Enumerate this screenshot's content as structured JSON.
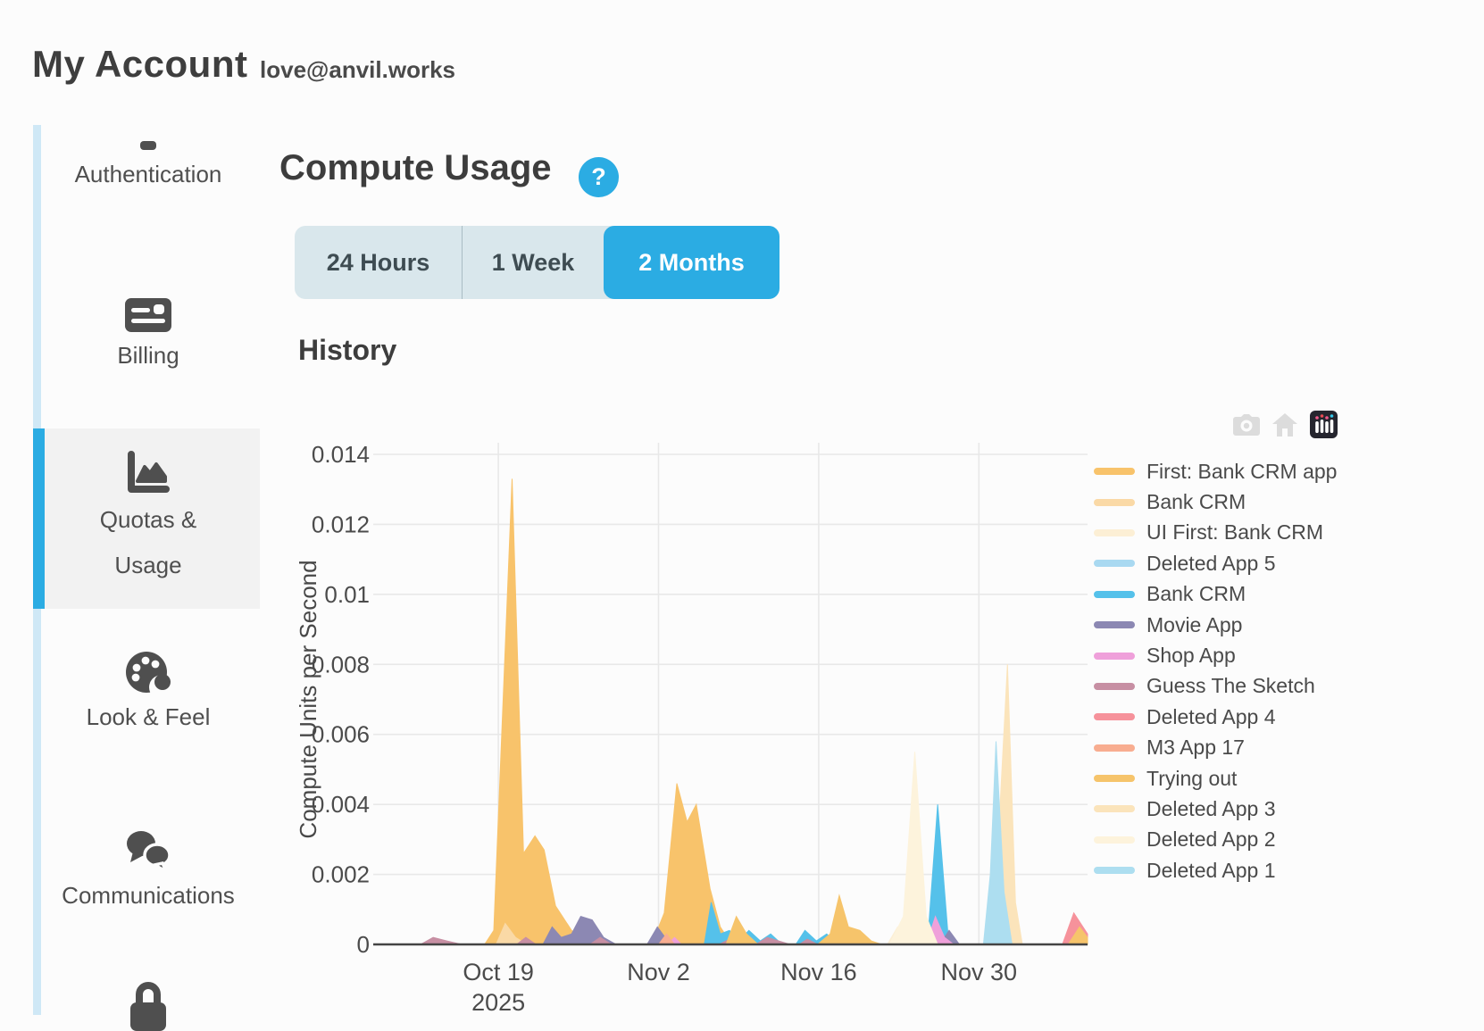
{
  "header": {
    "title": "My Account",
    "email": "love@anvil.works"
  },
  "sidebar": {
    "items": [
      {
        "label": "Authentication",
        "icon": "key-icon"
      },
      {
        "label": "Billing",
        "icon": "credit-card-icon"
      },
      {
        "label": "Quotas & Usage",
        "lines": [
          "Quotas &",
          "Usage"
        ],
        "icon": "chart-area-icon",
        "selected": true
      },
      {
        "label": "Look & Feel",
        "icon": "palette-icon"
      },
      {
        "label": "Communications",
        "icon": "comments-icon"
      },
      {
        "label": "",
        "icon": "lock-icon"
      }
    ],
    "accent_color": "#2bace3",
    "rail_color": "#cfe8f6",
    "selected_bg": "#f2f2f2"
  },
  "main": {
    "section_title": "Compute Usage",
    "help_label": "?",
    "range_buttons": [
      {
        "label": "24 Hours",
        "active": false
      },
      {
        "label": "1 Week",
        "active": false
      },
      {
        "label": "2 Months",
        "active": true
      }
    ],
    "history_title": "History",
    "accent_color": "#2bace3"
  },
  "chart_data": {
    "type": "area",
    "title": "",
    "xlabel": "",
    "ylabel": "Compute Units per Second",
    "x_unit": "days since 2025-10-09",
    "xlim": [
      0,
      61.5
    ],
    "ylim": [
      0,
      0.014
    ],
    "grid": true,
    "legend_position": "right",
    "modebar_icons": [
      "camera-icon",
      "home-icon",
      "plotly-logo-icon"
    ],
    "x_ticks": [
      {
        "day": 10,
        "label": "Oct 19",
        "sublabel": "2025"
      },
      {
        "day": 24,
        "label": "Nov 2",
        "sublabel": ""
      },
      {
        "day": 38,
        "label": "Nov 16",
        "sublabel": ""
      },
      {
        "day": 52,
        "label": "Nov 30",
        "sublabel": ""
      }
    ],
    "y_ticks": [
      "0",
      "0.002",
      "0.004",
      "0.006",
      "0.008",
      "0.01",
      "0.012",
      "0.014"
    ],
    "series": [
      {
        "name": "First: Bank CRM app",
        "color": "#F8C36B",
        "points": [
          [
            0,
            0
          ],
          [
            8.8,
            0
          ],
          [
            9.6,
            0.0004
          ],
          [
            11.2,
            0.0133
          ],
          [
            12.2,
            0.0026
          ],
          [
            13.2,
            0.0031
          ],
          [
            14.0,
            0.0027
          ],
          [
            15.0,
            0.0011
          ],
          [
            16.4,
            0.0004
          ],
          [
            17.8,
            0.0001
          ],
          [
            19.0,
            0
          ],
          [
            23.4,
            0
          ],
          [
            24.5,
            0.0009
          ],
          [
            25.6,
            0.0046
          ],
          [
            26.5,
            0.0035
          ],
          [
            27.3,
            0.004
          ],
          [
            28.5,
            0.0016
          ],
          [
            29.4,
            0.0005
          ],
          [
            30.4,
            0
          ],
          [
            61.5,
            0
          ]
        ]
      },
      {
        "name": "Bank CRM",
        "color": "#FAD9A6",
        "points": [
          [
            0,
            0
          ],
          [
            9.8,
            0
          ],
          [
            10.6,
            0.0006
          ],
          [
            11.5,
            0.0002
          ],
          [
            12.5,
            0
          ],
          [
            61.5,
            0
          ]
        ]
      },
      {
        "name": "UI First: Bank CRM",
        "color": "#FCEFD5",
        "points": [
          [
            0,
            0
          ],
          [
            44.0,
            0
          ],
          [
            44.9,
            0.0005
          ],
          [
            45.8,
            0.0001
          ],
          [
            46.6,
            0
          ],
          [
            61.5,
            0
          ]
        ]
      },
      {
        "name": "Deleted App 5",
        "color": "#A9D9F1",
        "points": [
          [
            0,
            0
          ],
          [
            45.6,
            0
          ],
          [
            46.4,
            0.0004
          ],
          [
            47.2,
            0.0001
          ],
          [
            48.0,
            0
          ],
          [
            61.5,
            0
          ]
        ]
      },
      {
        "name": "Bank CRM",
        "color": "#55C1EA",
        "points": [
          [
            0,
            0
          ],
          [
            28.0,
            0
          ],
          [
            28.6,
            0.0012
          ],
          [
            29.4,
            0.0003
          ],
          [
            30.2,
            0.0004
          ],
          [
            31.0,
            0.0001
          ],
          [
            31.9,
            0.0004
          ],
          [
            32.9,
            0.0001
          ],
          [
            33.8,
            0.0003
          ],
          [
            34.8,
            0
          ],
          [
            36.0,
            0
          ],
          [
            36.8,
            0.0004
          ],
          [
            37.8,
            0.0001
          ],
          [
            38.7,
            0.0003
          ],
          [
            39.6,
            0
          ],
          [
            47.5,
            0
          ],
          [
            48.4,
            0.004
          ],
          [
            49.3,
            0.0003
          ],
          [
            50.2,
            0
          ],
          [
            61.5,
            0
          ]
        ]
      },
      {
        "name": "Movie App",
        "color": "#8C88B3",
        "points": [
          [
            0,
            0
          ],
          [
            13.9,
            0
          ],
          [
            14.7,
            0.0005
          ],
          [
            15.5,
            0.0002
          ],
          [
            16.4,
            0.0003
          ],
          [
            17.2,
            0.0008
          ],
          [
            18.2,
            0.0007
          ],
          [
            19.2,
            0.0002
          ],
          [
            20.3,
            0
          ],
          [
            23.0,
            0
          ],
          [
            23.9,
            0.0005
          ],
          [
            24.8,
            0.0001
          ],
          [
            25.6,
            0
          ],
          [
            48.6,
            0
          ],
          [
            49.4,
            0.0004
          ],
          [
            50.3,
            0
          ],
          [
            61.5,
            0
          ]
        ]
      },
      {
        "name": "Shop App",
        "color": "#EFA0DA",
        "points": [
          [
            0,
            0
          ],
          [
            24.8,
            0
          ],
          [
            25.4,
            0.0002
          ],
          [
            26.0,
            0
          ],
          [
            47.4,
            0
          ],
          [
            48.2,
            0.0008
          ],
          [
            49.0,
            0.0002
          ],
          [
            49.8,
            0
          ],
          [
            52.6,
            0
          ],
          [
            53.5,
            0.0008
          ],
          [
            54.3,
            0.0002
          ],
          [
            55.0,
            0
          ],
          [
            61.5,
            0
          ]
        ]
      },
      {
        "name": "Guess The Sketch",
        "color": "#C78FA3",
        "points": [
          [
            0,
            0
          ],
          [
            3.2,
            0
          ],
          [
            4.3,
            0.0002
          ],
          [
            5.5,
            0.0001
          ],
          [
            6.8,
            0
          ],
          [
            11.6,
            0
          ],
          [
            12.4,
            0.0002
          ],
          [
            13.3,
            0
          ],
          [
            18.0,
            0
          ],
          [
            18.9,
            0.0002
          ],
          [
            19.9,
            0
          ],
          [
            29.3,
            0
          ],
          [
            30.2,
            0.00015
          ],
          [
            31.2,
            0
          ],
          [
            32.5,
            0
          ],
          [
            33.5,
            0.0002
          ],
          [
            34.5,
            0.0001
          ],
          [
            35.5,
            0
          ],
          [
            36.3,
            0
          ],
          [
            37.0,
            0.00015
          ],
          [
            37.9,
            0
          ],
          [
            61.5,
            0
          ]
        ]
      },
      {
        "name": "Deleted App 4",
        "color": "#F6929B",
        "points": [
          [
            0,
            0
          ],
          [
            59.3,
            0
          ],
          [
            60.3,
            0.0009
          ],
          [
            61.5,
            0.0003
          ]
        ]
      },
      {
        "name": "M3 App 17",
        "color": "#F8AD90",
        "points": [
          [
            0,
            0
          ],
          [
            24.0,
            0
          ],
          [
            24.7,
            0.0003
          ],
          [
            25.4,
            0
          ],
          [
            31.2,
            0
          ],
          [
            31.9,
            0.0002
          ],
          [
            32.7,
            0
          ],
          [
            61.5,
            0
          ]
        ]
      },
      {
        "name": "Trying out",
        "color": "#F6C46B",
        "points": [
          [
            0,
            0
          ],
          [
            29.9,
            0
          ],
          [
            30.8,
            0.0008
          ],
          [
            31.7,
            0.0003
          ],
          [
            32.7,
            0
          ],
          [
            37.9,
            0
          ],
          [
            39.0,
            0.0003
          ],
          [
            39.8,
            0.0014
          ],
          [
            40.6,
            0.0005
          ],
          [
            41.6,
            0.0004
          ],
          [
            42.6,
            0.0001
          ],
          [
            43.5,
            0
          ],
          [
            59.8,
            0
          ],
          [
            60.8,
            0.0005
          ],
          [
            61.5,
            0.0002
          ]
        ]
      },
      {
        "name": "Deleted App 3",
        "color": "#FBE4BB",
        "points": [
          [
            0,
            0
          ],
          [
            53.0,
            0
          ],
          [
            53.7,
            0.003
          ],
          [
            54.5,
            0.008
          ],
          [
            55.2,
            0.0012
          ],
          [
            55.8,
            0
          ],
          [
            61.5,
            0
          ]
        ]
      },
      {
        "name": "Deleted App 2",
        "color": "#FDF3DC",
        "points": [
          [
            0,
            0
          ],
          [
            44.2,
            0
          ],
          [
            45.4,
            0.0008
          ],
          [
            46.4,
            0.0055
          ],
          [
            47.4,
            0.0008
          ],
          [
            48.4,
            0
          ],
          [
            53.2,
            0
          ],
          [
            53.9,
            0.0006
          ],
          [
            54.6,
            0
          ],
          [
            61.5,
            0
          ]
        ]
      },
      {
        "name": "Deleted App 1",
        "color": "#ADDEF0",
        "points": [
          [
            0,
            0
          ],
          [
            52.4,
            0
          ],
          [
            53.0,
            0.002
          ],
          [
            53.5,
            0.0058
          ],
          [
            54.2,
            0.0015
          ],
          [
            54.9,
            0
          ],
          [
            61.5,
            0
          ]
        ]
      }
    ]
  }
}
